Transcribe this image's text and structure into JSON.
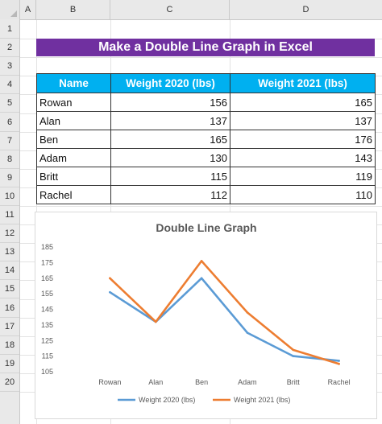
{
  "spreadsheet": {
    "columns": [
      "A",
      "B",
      "C",
      "D"
    ],
    "rows": [
      "1",
      "2",
      "3",
      "4",
      "5",
      "6",
      "7",
      "8",
      "9",
      "10",
      "11",
      "12",
      "13",
      "14",
      "15",
      "16",
      "17",
      "18",
      "19",
      "20"
    ]
  },
  "title": "Make a Double Line Graph in Excel",
  "table": {
    "headers": [
      "Name",
      "Weight 2020 (lbs)",
      "Weight 2021 (lbs)"
    ],
    "rows": [
      [
        "Rowan",
        "156",
        "165"
      ],
      [
        "Alan",
        "137",
        "137"
      ],
      [
        "Ben",
        "165",
        "176"
      ],
      [
        "Adam",
        "130",
        "143"
      ],
      [
        "Britt",
        "115",
        "119"
      ],
      [
        "Rachel",
        "112",
        "110"
      ]
    ]
  },
  "colors": {
    "title_bg": "#7030a0",
    "header_bg": "#00b0f0",
    "series_2020": "#5b9bd5",
    "series_2021": "#ed7d31"
  },
  "chart_data": {
    "type": "line",
    "title": "Double Line Graph",
    "categories": [
      "Rowan",
      "Alan",
      "Ben",
      "Adam",
      "Britt",
      "Rachel"
    ],
    "series": [
      {
        "name": "Weight 2020 (lbs)",
        "values": [
          156,
          137,
          165,
          130,
          115,
          112
        ]
      },
      {
        "name": "Weight 2021 (lbs)",
        "values": [
          165,
          137,
          176,
          143,
          119,
          110
        ]
      }
    ],
    "ylim": [
      105,
      185
    ],
    "yticks": [
      105,
      115,
      125,
      135,
      145,
      155,
      165,
      175,
      185
    ],
    "grid": false,
    "legend": "bottom"
  }
}
